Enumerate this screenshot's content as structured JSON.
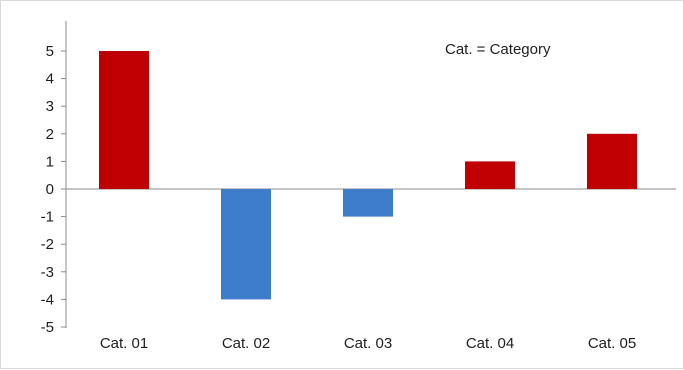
{
  "chart_data": {
    "type": "bar",
    "categories": [
      "Cat. 01",
      "Cat. 02",
      "Cat. 03",
      "Cat. 04",
      "Cat. 05"
    ],
    "values": [
      5,
      -4,
      -1,
      1,
      2
    ],
    "bar_colors": [
      "#c00000",
      "#3d7cc9",
      "#3d7cc9",
      "#c00000",
      "#c00000"
    ],
    "positive_color": "#c00000",
    "negative_color": "#3d7cc9",
    "ylim": [
      -5,
      5
    ],
    "yticks": [
      "5",
      "4",
      "3",
      "2",
      "1",
      "0",
      "-1",
      "-2",
      "-3",
      "-4",
      "-5"
    ],
    "annotation": "Cat. = Category",
    "legend": "none",
    "grid": false
  }
}
